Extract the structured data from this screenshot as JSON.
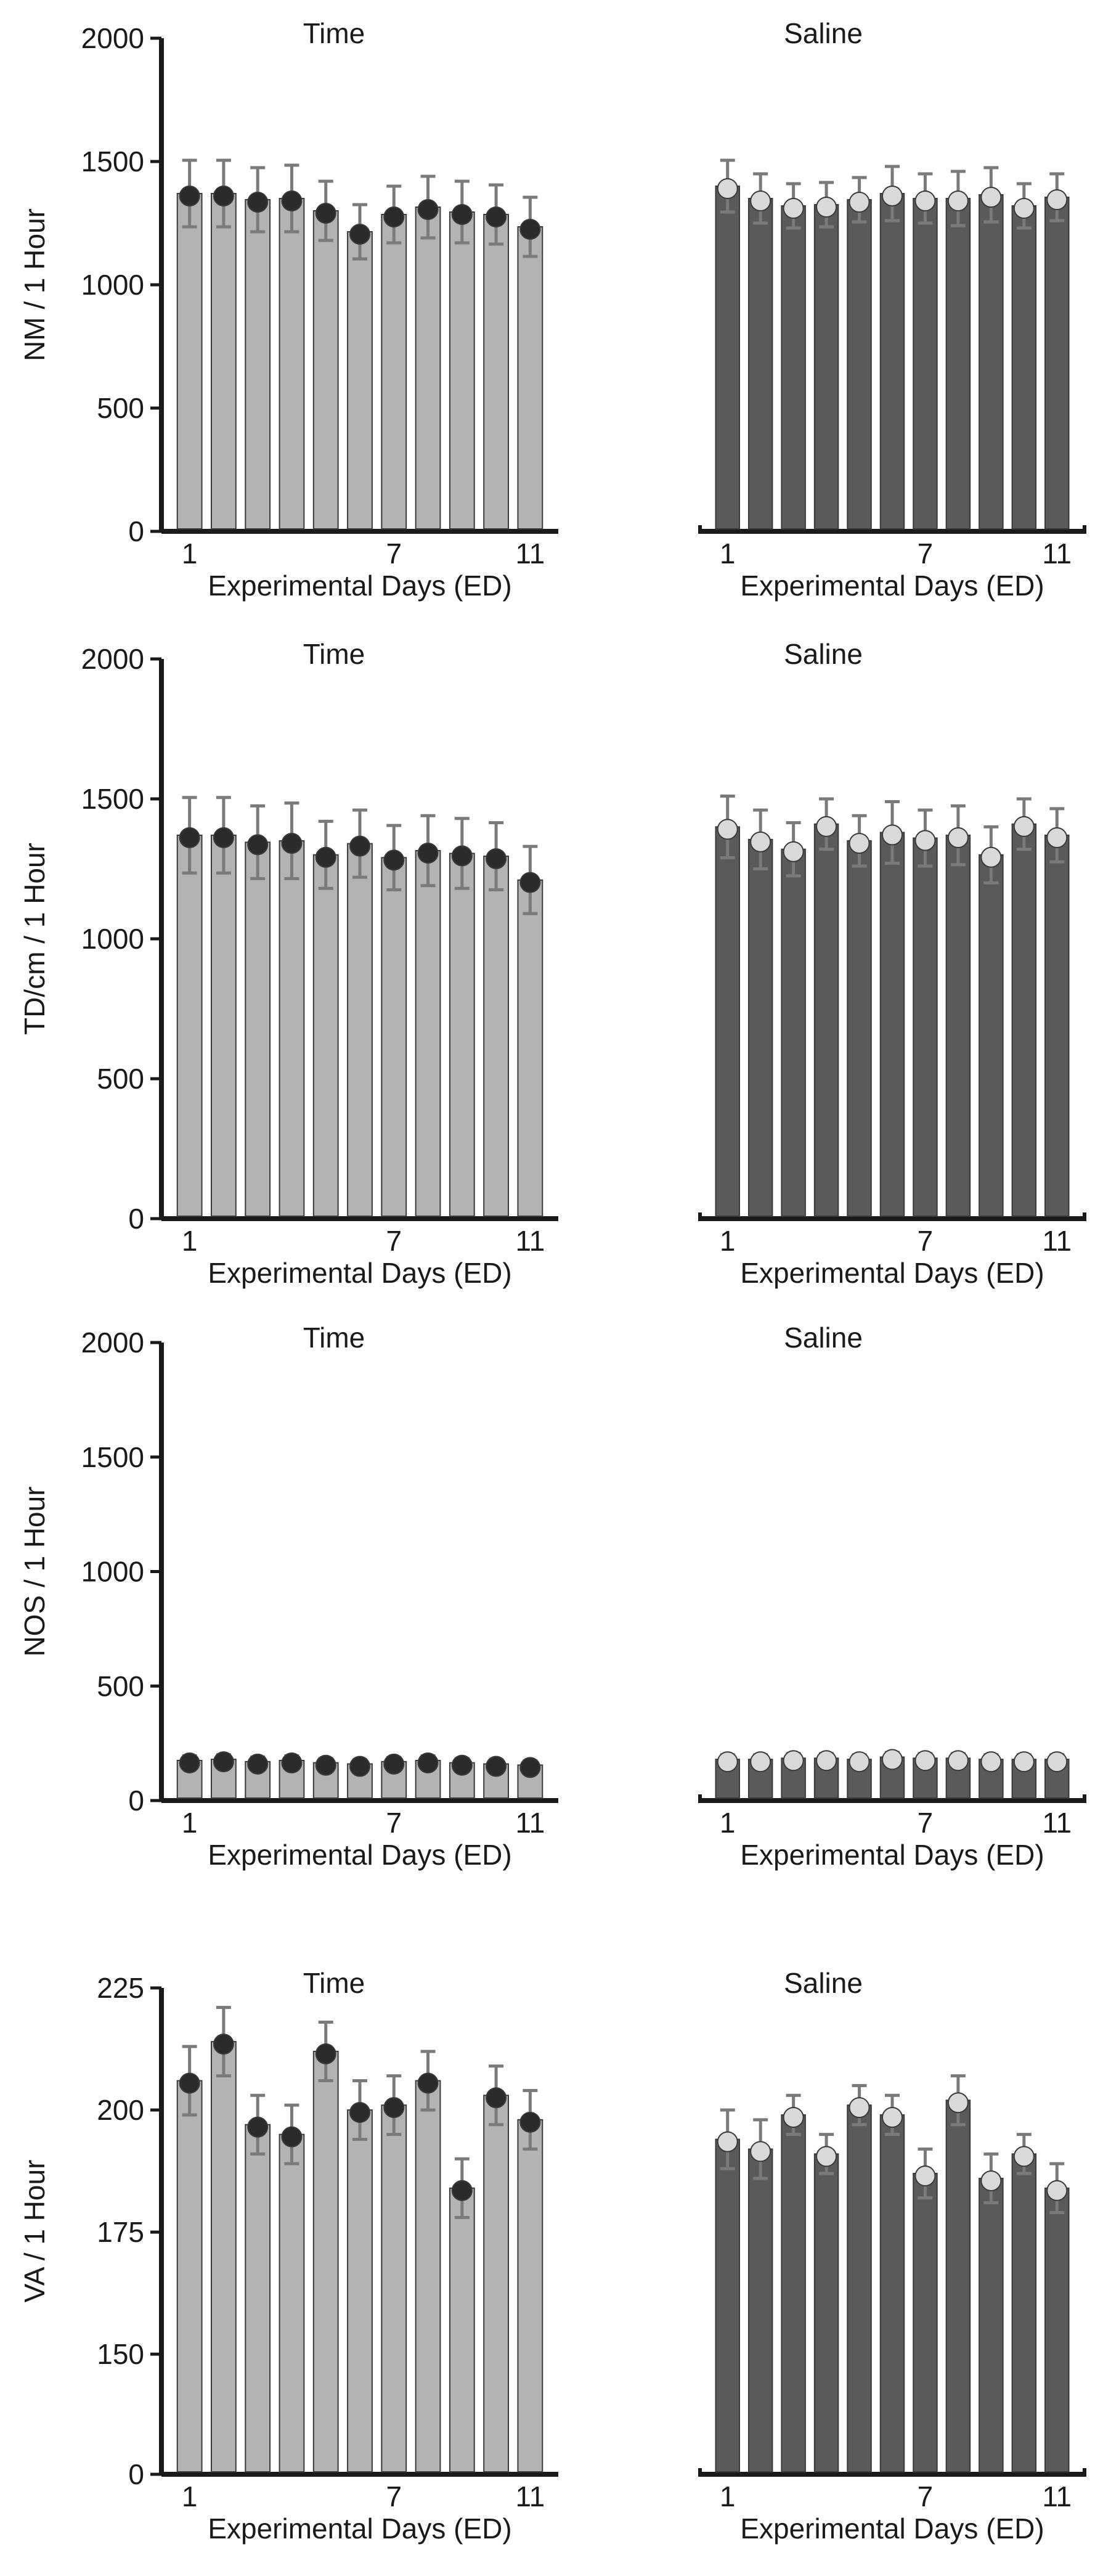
{
  "figure": {
    "background": "#ffffff"
  },
  "style": {
    "time_bar_color": "#b3b3b3",
    "saline_bar_color": "#5a5a5a",
    "axis_color": "#1a1a1a",
    "error_bar_color": "#7a7a7a",
    "marker_color_time": "#2b2b2b",
    "marker_color_saline": "#d9d9d9"
  },
  "chart_data": [
    {
      "id": "nm-time",
      "type": "bar",
      "title": "Time",
      "ylabel": "NM / 1 Hour",
      "xlabel": "Experimental Days (ED)",
      "ylim": [
        0,
        2000
      ],
      "yticks": [
        0,
        500,
        1000,
        1500,
        2000
      ],
      "xtick_labels": [
        "1",
        "7",
        "11"
      ],
      "categories": [
        1,
        2,
        3,
        4,
        5,
        6,
        7,
        8,
        9,
        10,
        11
      ],
      "values": [
        1370,
        1370,
        1345,
        1350,
        1300,
        1215,
        1285,
        1315,
        1295,
        1285,
        1235
      ],
      "errors": [
        135,
        135,
        130,
        135,
        120,
        110,
        115,
        125,
        125,
        120,
        120
      ],
      "series_color": "#b3b3b3",
      "show_yaxis": true
    },
    {
      "id": "nm-saline",
      "type": "bar",
      "title": "Saline",
      "ylabel": "",
      "xlabel": "Experimental Days (ED)",
      "ylim": [
        0,
        2000
      ],
      "yticks": [],
      "xtick_labels": [
        "1",
        "7",
        "11"
      ],
      "categories": [
        1,
        2,
        3,
        4,
        5,
        6,
        7,
        8,
        9,
        10,
        11
      ],
      "values": [
        1400,
        1350,
        1320,
        1325,
        1345,
        1370,
        1350,
        1350,
        1365,
        1320,
        1355
      ],
      "errors": [
        105,
        100,
        90,
        90,
        90,
        110,
        100,
        110,
        110,
        90,
        95
      ],
      "series_color": "#5a5a5a",
      "show_yaxis": false
    },
    {
      "id": "td-time",
      "type": "bar",
      "title": "Time",
      "ylabel": "TD/cm / 1 Hour",
      "xlabel": "Experimental Days (ED)",
      "ylim": [
        0,
        2000
      ],
      "yticks": [
        0,
        500,
        1000,
        1500,
        2000
      ],
      "xtick_labels": [
        "1",
        "7",
        "11"
      ],
      "categories": [
        1,
        2,
        3,
        4,
        5,
        6,
        7,
        8,
        9,
        10,
        11
      ],
      "values": [
        1370,
        1370,
        1345,
        1350,
        1300,
        1340,
        1290,
        1315,
        1305,
        1295,
        1210
      ],
      "errors": [
        135,
        135,
        130,
        135,
        120,
        120,
        115,
        125,
        125,
        120,
        120
      ],
      "series_color": "#b3b3b3",
      "show_yaxis": true
    },
    {
      "id": "td-saline",
      "type": "bar",
      "title": "Saline",
      "ylabel": "",
      "xlabel": "Experimental Days (ED)",
      "ylim": [
        0,
        2000
      ],
      "yticks": [],
      "xtick_labels": [
        "1",
        "7",
        "11"
      ],
      "categories": [
        1,
        2,
        3,
        4,
        5,
        6,
        7,
        8,
        9,
        10,
        11
      ],
      "values": [
        1400,
        1355,
        1320,
        1410,
        1350,
        1380,
        1360,
        1370,
        1300,
        1410,
        1370
      ],
      "errors": [
        110,
        105,
        95,
        90,
        90,
        110,
        100,
        105,
        100,
        90,
        95
      ],
      "series_color": "#5a5a5a",
      "show_yaxis": false
    },
    {
      "id": "nos-time",
      "type": "bar",
      "title": "Time",
      "ylabel": "NOS / 1 Hour",
      "xlabel": "Experimental Days (ED)",
      "ylim": [
        0,
        2000
      ],
      "yticks": [
        0,
        500,
        1000,
        1500,
        2000
      ],
      "xtick_labels": [
        "1",
        "7",
        "11"
      ],
      "categories": [
        1,
        2,
        3,
        4,
        5,
        6,
        7,
        8,
        9,
        10,
        11
      ],
      "values": [
        175,
        180,
        170,
        175,
        165,
        160,
        170,
        175,
        165,
        160,
        155
      ],
      "errors": [
        20,
        20,
        20,
        20,
        18,
        18,
        18,
        20,
        18,
        18,
        18
      ],
      "series_color": "#b3b3b3",
      "show_yaxis": true
    },
    {
      "id": "nos-saline",
      "type": "bar",
      "title": "Saline",
      "ylabel": "",
      "xlabel": "Experimental Days (ED)",
      "ylim": [
        0,
        2000
      ],
      "yticks": [],
      "xtick_labels": [
        "1",
        "7",
        "11"
      ],
      "categories": [
        1,
        2,
        3,
        4,
        5,
        6,
        7,
        8,
        9,
        10,
        11
      ],
      "values": [
        180,
        180,
        185,
        185,
        180,
        190,
        185,
        185,
        180,
        180,
        180
      ],
      "errors": [
        20,
        20,
        20,
        20,
        20,
        20,
        20,
        20,
        20,
        20,
        20
      ],
      "series_color": "#5a5a5a",
      "show_yaxis": false
    },
    {
      "id": "va-time",
      "type": "bar",
      "title": "Time",
      "ylabel": "VA / 1 Hour",
      "xlabel": "Experimental Days (ED)",
      "y_scale_note": "broken axis: 0 then 150-225",
      "ylim": [
        0,
        225
      ],
      "yticks": [
        0,
        150,
        175,
        200,
        225
      ],
      "xtick_labels": [
        "1",
        "7",
        "11"
      ],
      "categories": [
        1,
        2,
        3,
        4,
        5,
        6,
        7,
        8,
        9,
        10,
        11
      ],
      "values": [
        206,
        214,
        197,
        195,
        212,
        200,
        201,
        206,
        184,
        203,
        198
      ],
      "errors": [
        7,
        7,
        6,
        6,
        6,
        6,
        6,
        6,
        6,
        6,
        6
      ],
      "series_color": "#b3b3b3",
      "show_yaxis": true
    },
    {
      "id": "va-saline",
      "type": "bar",
      "title": "Saline",
      "ylabel": "",
      "xlabel": "Experimental Days (ED)",
      "ylim": [
        0,
        225
      ],
      "yticks": [],
      "xtick_labels": [
        "1",
        "7",
        "11"
      ],
      "categories": [
        1,
        2,
        3,
        4,
        5,
        6,
        7,
        8,
        9,
        10,
        11
      ],
      "values": [
        194,
        192,
        199,
        191,
        201,
        199,
        187,
        202,
        186,
        191,
        184
      ],
      "errors": [
        6,
        6,
        4,
        4,
        4,
        4,
        5,
        5,
        5,
        4,
        5
      ],
      "series_color": "#5a5a5a",
      "show_yaxis": false
    }
  ]
}
